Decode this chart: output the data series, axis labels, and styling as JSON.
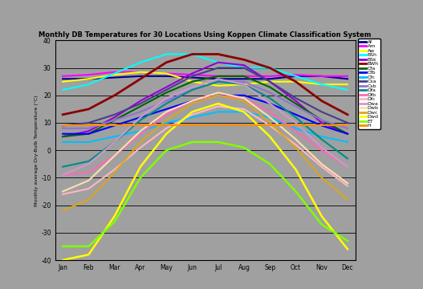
{
  "title": "Monthly DB Temperatures for 30 Locations Using Koppen Climate Classification System",
  "ylabel": "Monthly average Dry-Bulb Temperature (°C)",
  "months": [
    "Jan",
    "Feb",
    "Mar",
    "Apr",
    "May",
    "Jun",
    "Jul",
    "Aug",
    "Sep",
    "Oct",
    "Nov",
    "Dec"
  ],
  "ylim": [
    -40,
    40
  ],
  "yticks": [
    -40,
    -30,
    -20,
    -10,
    0,
    10,
    20,
    30,
    40
  ],
  "background": "#a0a0a0",
  "plot_bg": "#a0a0a0",
  "climates": {
    "Af": {
      "color": "#00008B",
      "data": [
        26,
        26,
        26.5,
        27,
        27,
        26.5,
        26,
        26,
        26,
        27,
        27,
        26
      ]
    },
    "Am": {
      "color": "#ff00ff",
      "data": [
        27,
        27.5,
        28.5,
        28.5,
        28,
        27.5,
        27,
        27,
        27,
        27.5,
        27,
        27
      ]
    },
    "Aw": {
      "color": "#ffff00",
      "data": [
        25,
        26,
        27.5,
        28.5,
        28,
        25,
        23.5,
        24,
        25,
        25,
        24,
        24
      ]
    },
    "BSh": {
      "color": "#00ffff",
      "data": [
        22,
        24,
        28,
        32,
        35,
        35,
        32,
        30,
        30,
        27,
        24,
        22
      ]
    },
    "BSk": {
      "color": "#9400D3",
      "data": [
        5,
        7,
        12,
        18,
        23,
        28,
        32,
        31,
        25,
        18,
        10,
        6
      ]
    },
    "BWh": {
      "color": "#8B0000",
      "data": [
        13,
        15,
        20,
        26,
        32,
        35,
        35,
        33,
        30,
        25,
        18,
        13
      ]
    },
    "Cfa": {
      "color": "#006400",
      "data": [
        5,
        6,
        11,
        16,
        21,
        25,
        27,
        27,
        23,
        17,
        11,
        6
      ]
    },
    "Cfb": {
      "color": "#0000FF",
      "data": [
        6,
        6,
        9,
        12,
        15,
        18,
        20,
        20,
        17,
        13,
        9,
        6
      ]
    },
    "Cfc": {
      "color": "#00BFFF",
      "data": [
        3,
        3,
        5,
        7,
        10,
        12,
        14,
        14,
        12,
        8,
        5,
        3
      ]
    },
    "Csa": {
      "color": "#483D8B",
      "data": [
        9,
        10,
        13,
        17,
        22,
        27,
        30,
        30,
        25,
        19,
        14,
        10
      ]
    },
    "Csb": {
      "color": "#9370DB",
      "data": [
        8,
        8,
        11,
        14,
        18,
        22,
        25,
        25,
        21,
        16,
        11,
        8
      ]
    },
    "Dfa": {
      "color": "#008B8B",
      "data": [
        -6,
        -4,
        3,
        11,
        17,
        22,
        25,
        24,
        19,
        12,
        4,
        -3
      ]
    },
    "Dfb": {
      "color": "#FF69B4",
      "data": [
        -9,
        -8,
        -2,
        6,
        13,
        18,
        20,
        19,
        14,
        7,
        0,
        -6
      ]
    },
    "Dfc": {
      "color": "#FFB6C1",
      "data": [
        -16,
        -14,
        -7,
        1,
        8,
        13,
        16,
        15,
        9,
        2,
        -6,
        -13
      ]
    },
    "Dwa": {
      "color": "#CC99CC",
      "data": [
        -9,
        -5,
        3,
        12,
        19,
        23,
        26,
        24,
        17,
        10,
        1,
        -6
      ]
    },
    "Dwb": {
      "color": "#FFDEAD",
      "data": [
        -15,
        -11,
        -2,
        7,
        14,
        18,
        21,
        19,
        12,
        4,
        -5,
        -12
      ]
    },
    "Dwc": {
      "color": "#DAA520",
      "data": [
        -22,
        -18,
        -8,
        3,
        11,
        17,
        20,
        18,
        10,
        1,
        -10,
        -18
      ]
    },
    "Dwd": {
      "color": "#FFFF00",
      "data": [
        -40,
        -38,
        -24,
        -6,
        6,
        14,
        17,
        14,
        5,
        -7,
        -24,
        -36
      ]
    },
    "ET": {
      "color": "#7FFF00",
      "data": [
        -35,
        -35,
        -26,
        -10,
        0,
        3,
        3,
        1,
        -5,
        -15,
        -27,
        -33
      ]
    },
    "H": {
      "color": "#FF8C00",
      "data": [
        9,
        9,
        9,
        9,
        9,
        9,
        9,
        9,
        9,
        9,
        9,
        9
      ]
    }
  }
}
